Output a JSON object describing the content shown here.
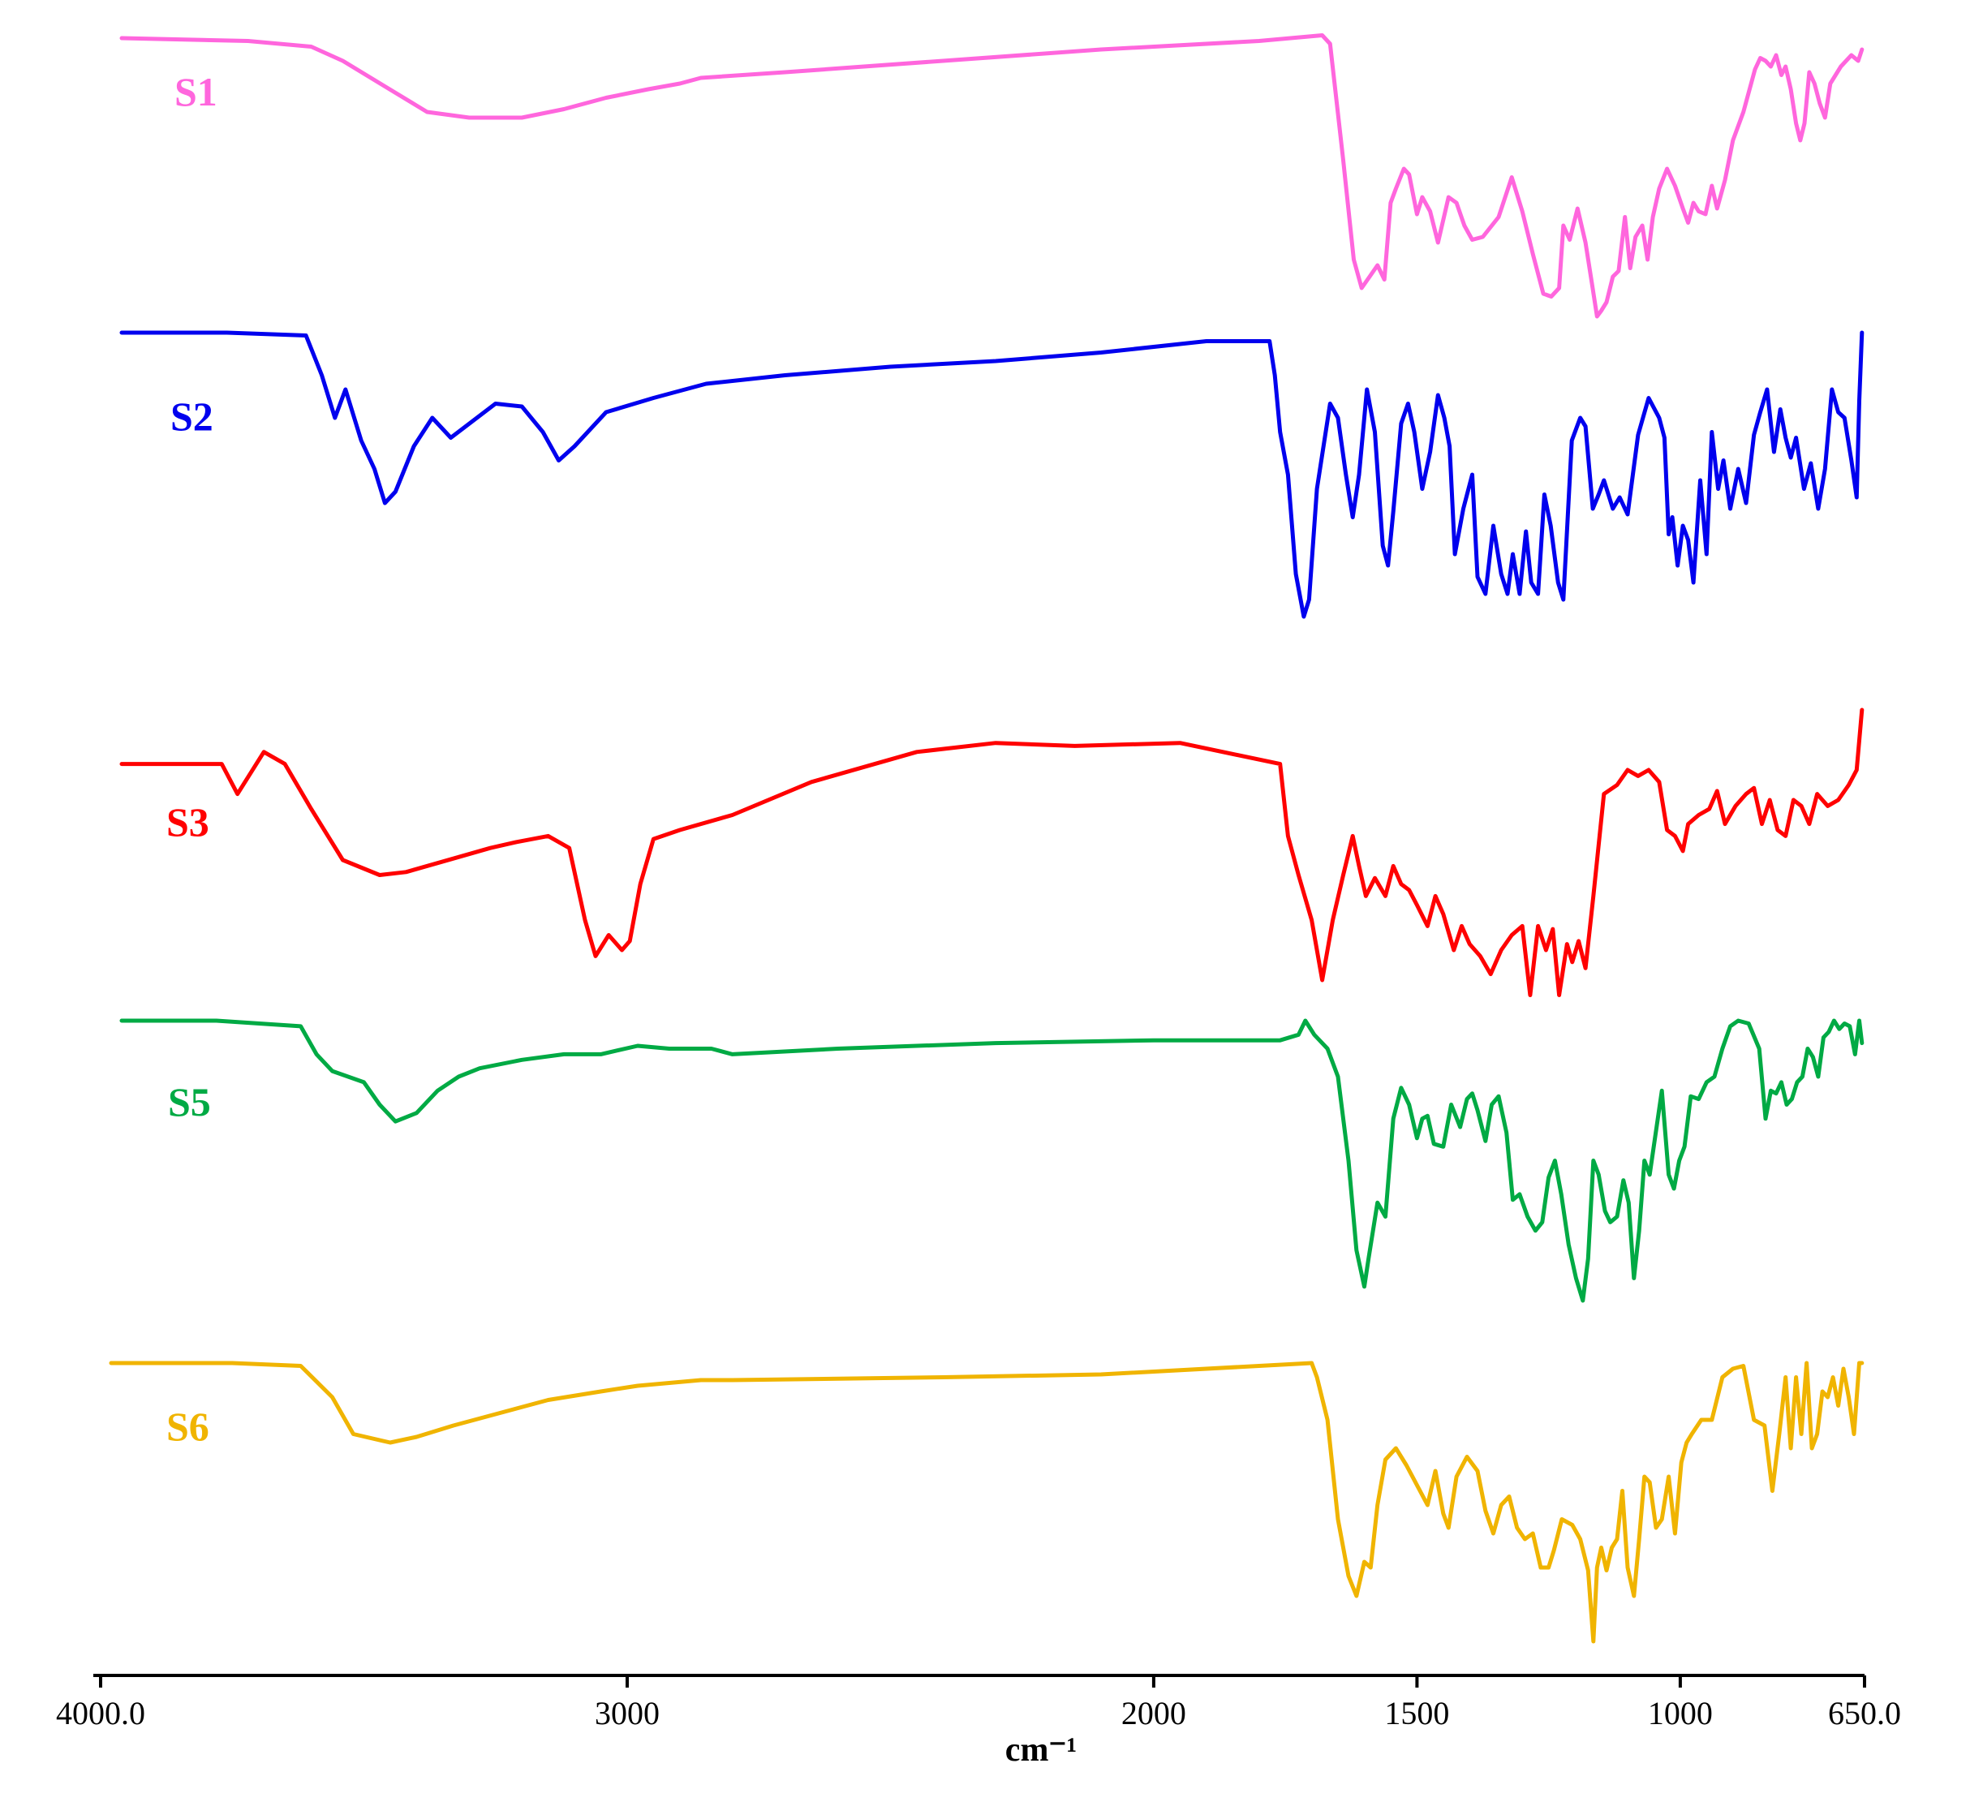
{
  "chart_data": {
    "type": "line",
    "title": "",
    "xlabel": "cm⁻¹",
    "ylabel": "",
    "x_reversed": true,
    "xlim": [
      4000,
      650
    ],
    "x_ticks": [
      {
        "value": 4000,
        "label": "4000.0"
      },
      {
        "value": 3000,
        "label": "3000"
      },
      {
        "value": 2000,
        "label": "2000"
      },
      {
        "value": 1500,
        "label": "1500"
      },
      {
        "value": 1000,
        "label": "1000"
      },
      {
        "value": 650,
        "label": "650.0"
      }
    ],
    "grid": false,
    "legend": "none",
    "series": [
      {
        "name": "S1",
        "color": "#ff66dd",
        "x": [
          3960,
          3720,
          3600,
          3540,
          3460,
          3380,
          3300,
          3200,
          3120,
          3040,
          2960,
          2900,
          2860,
          2700,
          2400,
          2100,
          1800,
          1680,
          1665,
          1640,
          1620,
          1605,
          1590,
          1575,
          1562,
          1550,
          1540,
          1525,
          1515,
          1500,
          1490,
          1475,
          1460,
          1440,
          1425,
          1410,
          1395,
          1375,
          1345,
          1320,
          1300,
          1280,
          1260,
          1245,
          1230,
          1222,
          1210,
          1195,
          1180,
          1168,
          1158,
          1150,
          1140,
          1128,
          1117,
          1105,
          1095,
          1085,
          1072,
          1062,
          1052,
          1040,
          1025,
          1010,
          995,
          985,
          975,
          965,
          952,
          940,
          930,
          915,
          900,
          880,
          858,
          848,
          838,
          828,
          818,
          808,
          800,
          790,
          780,
          772,
          764,
          755,
          745,
          735,
          725,
          715,
          705,
          695,
          685,
          675,
          662,
          655
        ],
        "y": [
          0.02,
          0.03,
          0.05,
          0.1,
          0.19,
          0.28,
          0.3,
          0.3,
          0.27,
          0.23,
          0.2,
          0.18,
          0.16,
          0.14,
          0.1,
          0.06,
          0.03,
          0.01,
          0.04,
          0.45,
          0.8,
          0.9,
          0.86,
          0.82,
          0.87,
          0.6,
          0.55,
          0.48,
          0.5,
          0.64,
          0.58,
          0.63,
          0.74,
          0.58,
          0.6,
          0.68,
          0.73,
          0.72,
          0.65,
          0.51,
          0.63,
          0.78,
          0.92,
          0.93,
          0.9,
          0.68,
          0.73,
          0.62,
          0.74,
          0.88,
          1.0,
          0.98,
          0.95,
          0.86,
          0.84,
          0.65,
          0.83,
          0.72,
          0.68,
          0.8,
          0.65,
          0.55,
          0.48,
          0.54,
          0.62,
          0.67,
          0.6,
          0.63,
          0.64,
          0.54,
          0.62,
          0.52,
          0.38,
          0.28,
          0.13,
          0.09,
          0.1,
          0.12,
          0.08,
          0.15,
          0.12,
          0.2,
          0.32,
          0.38,
          0.32,
          0.14,
          0.18,
          0.25,
          0.3,
          0.18,
          0.15,
          0.12,
          0.1,
          0.08,
          0.1,
          0.06
        ]
      },
      {
        "name": "S2",
        "color": "#0000ee",
        "x": [
          3960,
          3760,
          3610,
          3580,
          3555,
          3535,
          3505,
          3480,
          3460,
          3440,
          3405,
          3370,
          3335,
          3250,
          3200,
          3160,
          3130,
          3100,
          3040,
          2950,
          2850,
          2700,
          2500,
          2300,
          2100,
          1900,
          1780,
          1770,
          1760,
          1745,
          1730,
          1715,
          1705,
          1690,
          1665,
          1650,
          1635,
          1622,
          1610,
          1595,
          1580,
          1565,
          1555,
          1545,
          1530,
          1517,
          1505,
          1490,
          1475,
          1460,
          1448,
          1438,
          1428,
          1412,
          1395,
          1385,
          1370,
          1355,
          1340,
          1328,
          1318,
          1305,
          1293,
          1283,
          1270,
          1258,
          1246,
          1232,
          1222,
          1206,
          1190,
          1180,
          1166,
          1155,
          1145,
          1128,
          1115,
          1100,
          1080,
          1060,
          1040,
          1030,
          1022,
          1015,
          1005,
          995,
          985,
          975,
          962,
          950,
          940,
          928,
          918,
          905,
          890,
          875,
          860,
          848,
          835,
          822,
          810,
          800,
          790,
          780,
          765,
          752,
          738,
          725,
          712,
          700,
          688,
          675,
          665,
          660,
          655
        ],
        "y": [
          0.0,
          0.0,
          0.01,
          0.15,
          0.3,
          0.2,
          0.38,
          0.48,
          0.6,
          0.56,
          0.4,
          0.3,
          0.37,
          0.25,
          0.26,
          0.35,
          0.45,
          0.4,
          0.28,
          0.23,
          0.18,
          0.15,
          0.12,
          0.1,
          0.07,
          0.03,
          0.03,
          0.15,
          0.35,
          0.5,
          0.85,
          1.0,
          0.94,
          0.55,
          0.25,
          0.3,
          0.5,
          0.65,
          0.5,
          0.2,
          0.35,
          0.75,
          0.82,
          0.63,
          0.32,
          0.25,
          0.35,
          0.55,
          0.42,
          0.22,
          0.3,
          0.4,
          0.78,
          0.62,
          0.5,
          0.86,
          0.92,
          0.68,
          0.85,
          0.92,
          0.78,
          0.92,
          0.7,
          0.88,
          0.92,
          0.57,
          0.68,
          0.88,
          0.94,
          0.38,
          0.3,
          0.33,
          0.62,
          0.57,
          0.52,
          0.62,
          0.58,
          0.64,
          0.36,
          0.23,
          0.3,
          0.37,
          0.71,
          0.65,
          0.82,
          0.68,
          0.73,
          0.88,
          0.52,
          0.78,
          0.35,
          0.55,
          0.45,
          0.62,
          0.48,
          0.6,
          0.36,
          0.28,
          0.2,
          0.42,
          0.27,
          0.37,
          0.44,
          0.37,
          0.55,
          0.46,
          0.62,
          0.48,
          0.2,
          0.28,
          0.3,
          0.45,
          0.58,
          0.24,
          0.0
        ]
      },
      {
        "name": "S3",
        "color": "#ff0000",
        "x": [
          3960,
          3770,
          3740,
          3690,
          3650,
          3600,
          3540,
          3470,
          3420,
          3320,
          3260,
          3210,
          3150,
          3110,
          3080,
          3060,
          3035,
          3010,
          2995,
          2975,
          2950,
          2900,
          2800,
          2650,
          2450,
          2300,
          2150,
          1950,
          1760,
          1745,
          1725,
          1700,
          1680,
          1660,
          1640,
          1622,
          1610,
          1597,
          1580,
          1560,
          1545,
          1530,
          1515,
          1500,
          1480,
          1465,
          1450,
          1430,
          1415,
          1400,
          1380,
          1360,
          1340,
          1320,
          1300,
          1285,
          1270,
          1255,
          1242,
          1230,
          1215,
          1205,
          1193,
          1180,
          1165,
          1145,
          1120,
          1100,
          1080,
          1060,
          1040,
          1025,
          1010,
          995,
          985,
          965,
          945,
          930,
          915,
          895,
          875,
          860,
          845,
          830,
          815,
          800,
          785,
          770,
          755,
          740,
          720,
          700,
          680,
          665,
          655
        ],
        "y": [
          0.18,
          0.18,
          0.28,
          0.14,
          0.18,
          0.33,
          0.5,
          0.55,
          0.54,
          0.49,
          0.46,
          0.44,
          0.42,
          0.46,
          0.7,
          0.82,
          0.75,
          0.8,
          0.77,
          0.58,
          0.43,
          0.4,
          0.35,
          0.24,
          0.14,
          0.11,
          0.12,
          0.11,
          0.18,
          0.42,
          0.55,
          0.7,
          0.9,
          0.7,
          0.55,
          0.42,
          0.52,
          0.62,
          0.56,
          0.62,
          0.52,
          0.58,
          0.6,
          0.65,
          0.72,
          0.62,
          0.68,
          0.8,
          0.72,
          0.78,
          0.82,
          0.88,
          0.8,
          0.75,
          0.72,
          0.95,
          0.72,
          0.8,
          0.73,
          0.95,
          0.78,
          0.84,
          0.77,
          0.86,
          0.62,
          0.28,
          0.25,
          0.2,
          0.22,
          0.2,
          0.24,
          0.4,
          0.42,
          0.47,
          0.38,
          0.35,
          0.33,
          0.27,
          0.38,
          0.32,
          0.28,
          0.26,
          0.38,
          0.3,
          0.4,
          0.42,
          0.3,
          0.32,
          0.38,
          0.28,
          0.32,
          0.3,
          0.25,
          0.2,
          0.0
        ]
      },
      {
        "name": "S5",
        "color": "#00aa44",
        "x": [
          3960,
          3780,
          3620,
          3590,
          3560,
          3500,
          3470,
          3440,
          3400,
          3360,
          3320,
          3280,
          3200,
          3120,
          3050,
          2980,
          2920,
          2880,
          2840,
          2800,
          2600,
          2300,
          2000,
          1760,
          1725,
          1712,
          1695,
          1670,
          1650,
          1630,
          1615,
          1600,
          1592,
          1575,
          1560,
          1545,
          1530,
          1515,
          1500,
          1490,
          1480,
          1468,
          1450,
          1435,
          1418,
          1405,
          1395,
          1385,
          1370,
          1358,
          1345,
          1330,
          1318,
          1305,
          1290,
          1275,
          1262,
          1250,
          1238,
          1226,
          1212,
          1198,
          1185,
          1175,
          1165,
          1155,
          1143,
          1133,
          1120,
          1108,
          1098,
          1088,
          1078,
          1068,
          1058,
          1048,
          1035,
          1022,
          1012,
          1002,
          992,
          980,
          965,
          950,
          935,
          920,
          905,
          890,
          870,
          850,
          838,
          828,
          818,
          808,
          798,
          788,
          778,
          768,
          758,
          748,
          738,
          728,
          718,
          708,
          698,
          688,
          678,
          668,
          660,
          655
        ],
        "y": [
          0.0,
          0.0,
          0.02,
          0.12,
          0.18,
          0.22,
          0.3,
          0.36,
          0.33,
          0.25,
          0.2,
          0.17,
          0.14,
          0.12,
          0.12,
          0.09,
          0.1,
          0.1,
          0.1,
          0.12,
          0.1,
          0.08,
          0.07,
          0.07,
          0.05,
          0.0,
          0.05,
          0.1,
          0.2,
          0.5,
          0.82,
          0.95,
          0.85,
          0.65,
          0.7,
          0.35,
          0.24,
          0.3,
          0.42,
          0.35,
          0.34,
          0.44,
          0.45,
          0.3,
          0.38,
          0.28,
          0.26,
          0.32,
          0.43,
          0.3,
          0.27,
          0.4,
          0.64,
          0.62,
          0.7,
          0.75,
          0.72,
          0.56,
          0.5,
          0.62,
          0.8,
          0.92,
          1.0,
          0.85,
          0.5,
          0.55,
          0.68,
          0.72,
          0.7,
          0.57,
          0.65,
          0.92,
          0.75,
          0.5,
          0.55,
          0.42,
          0.25,
          0.55,
          0.6,
          0.5,
          0.45,
          0.27,
          0.28,
          0.22,
          0.2,
          0.1,
          0.02,
          0.0,
          0.01,
          0.1,
          0.35,
          0.25,
          0.26,
          0.22,
          0.3,
          0.28,
          0.22,
          0.2,
          0.1,
          0.13,
          0.2,
          0.06,
          0.04,
          0.0,
          0.03,
          0.01,
          0.02,
          0.12,
          0.0,
          0.08
        ]
      },
      {
        "name": "S6",
        "color": "#f0b400",
        "x": [
          3980,
          3750,
          3620,
          3560,
          3520,
          3450,
          3400,
          3330,
          3250,
          3150,
          3050,
          2980,
          2920,
          2860,
          2800,
          2400,
          2100,
          1700,
          1690,
          1670,
          1650,
          1630,
          1615,
          1600,
          1588,
          1575,
          1560,
          1540,
          1520,
          1500,
          1480,
          1465,
          1450,
          1440,
          1425,
          1405,
          1385,
          1370,
          1355,
          1340,
          1325,
          1310,
          1295,
          1280,
          1265,
          1250,
          1240,
          1225,
          1205,
          1190,
          1175,
          1165,
          1158,
          1150,
          1140,
          1130,
          1120,
          1110,
          1100,
          1088,
          1078,
          1068,
          1058,
          1046,
          1035,
          1022,
          1010,
          998,
          988,
          978,
          960,
          940,
          920,
          900,
          880,
          860,
          840,
          825,
          812,
          800,
          790,
          780,
          770,
          760,
          750,
          740,
          730,
          720,
          710,
          700,
          690,
          680,
          670,
          660,
          655
        ],
        "y": [
          0.0,
          0.0,
          0.01,
          0.12,
          0.25,
          0.28,
          0.26,
          0.22,
          0.18,
          0.13,
          0.1,
          0.08,
          0.07,
          0.06,
          0.06,
          0.05,
          0.04,
          0.0,
          0.05,
          0.2,
          0.55,
          0.75,
          0.82,
          0.7,
          0.72,
          0.5,
          0.34,
          0.3,
          0.36,
          0.43,
          0.5,
          0.38,
          0.53,
          0.58,
          0.4,
          0.33,
          0.38,
          0.52,
          0.6,
          0.5,
          0.47,
          0.58,
          0.62,
          0.6,
          0.72,
          0.72,
          0.66,
          0.55,
          0.57,
          0.62,
          0.73,
          0.98,
          0.72,
          0.65,
          0.73,
          0.65,
          0.62,
          0.45,
          0.72,
          0.82,
          0.62,
          0.4,
          0.42,
          0.58,
          0.55,
          0.4,
          0.6,
          0.35,
          0.28,
          0.25,
          0.2,
          0.2,
          0.05,
          0.02,
          0.01,
          0.2,
          0.22,
          0.45,
          0.25,
          0.05,
          0.3,
          0.05,
          0.25,
          0.0,
          0.3,
          0.25,
          0.1,
          0.12,
          0.05,
          0.15,
          0.02,
          0.12,
          0.25,
          0.0,
          0.0
        ]
      }
    ]
  }
}
